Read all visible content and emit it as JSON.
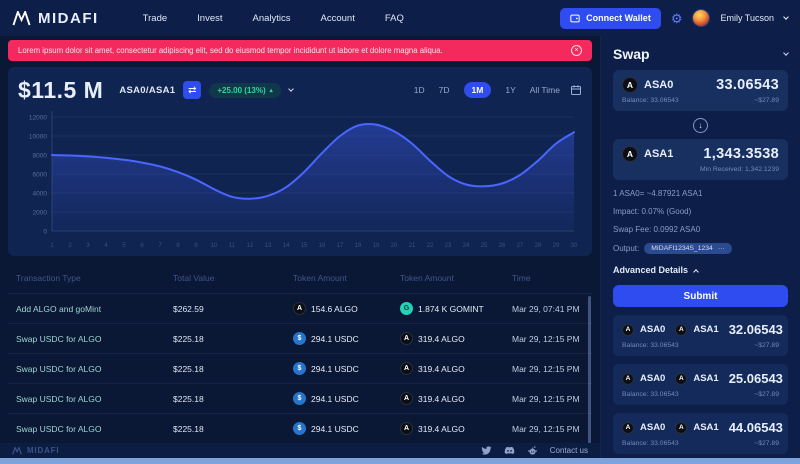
{
  "nav": {
    "brand": "MIDAFI",
    "items": [
      "Trade",
      "Invest",
      "Analytics",
      "Account",
      "FAQ"
    ],
    "connect_wallet": "Connect Wallet",
    "user": "Emily Tucson"
  },
  "banner": {
    "text": "Lorem ipsum dolor sit amet, consectetur adipiscing elit, sed do eiusmod tempor incididunt ut labore et dolore magna aliqua."
  },
  "market": {
    "value": "$11.5 M",
    "pair": "ASA0/ASA1",
    "change": "+25.00 (13%)",
    "ranges": [
      "1D",
      "7D",
      "1M",
      "1Y",
      "All Time"
    ],
    "selected_range": "1M"
  },
  "chart_data": {
    "type": "area",
    "x": [
      1,
      2,
      3,
      4,
      5,
      6,
      7,
      8,
      9,
      10,
      11,
      12,
      13,
      14,
      15,
      16,
      17,
      18,
      19,
      20,
      21,
      22,
      23,
      24,
      25,
      26,
      27,
      28,
      29,
      30
    ],
    "values": [
      8000,
      7950,
      7850,
      7700,
      7500,
      7200,
      6800,
      6200,
      5400,
      4400,
      3600,
      3400,
      3700,
      4600,
      6200,
      8200,
      10000,
      11100,
      11200,
      10500,
      9200,
      7400,
      5800,
      4900,
      4700,
      5000,
      5900,
      7400,
      9200,
      10400
    ],
    "ylim": [
      0,
      12000
    ],
    "yticks": [
      0,
      2000,
      4000,
      6000,
      8000,
      10000,
      12000
    ],
    "title": "",
    "xlabel": "",
    "ylabel": "",
    "grid": true,
    "legend": false,
    "line_color": "#4a66ff",
    "fill_from": "rgba(62,92,235,0.42)",
    "fill_to": "rgba(62,92,235,0.05)"
  },
  "transactions": {
    "headers": [
      "Transaction Type",
      "Total Value",
      "Token Amount",
      "Token Amount",
      "Time"
    ],
    "rows": [
      {
        "type": "Add ALGO and goMint",
        "total": "$262.59",
        "token1": "ALGO",
        "amount1": "154.6 ALGO",
        "token2": "GOMINT",
        "amount2": "1.874 K GOMINT",
        "time": "Mar 29, 07:41 PM"
      },
      {
        "type": "Swap USDC for ALGO",
        "total": "$225.18",
        "token1": "USDC",
        "amount1": "294.1 USDC",
        "token2": "ALGO",
        "amount2": "319.4 ALGO",
        "time": "Mar 29, 12:15 PM"
      },
      {
        "type": "Swap USDC for ALGO",
        "total": "$225.18",
        "token1": "USDC",
        "amount1": "294.1 USDC",
        "token2": "ALGO",
        "amount2": "319.4 ALGO",
        "time": "Mar 29, 12:15 PM"
      },
      {
        "type": "Swap USDC for ALGO",
        "total": "$225.18",
        "token1": "USDC",
        "amount1": "294.1 USDC",
        "token2": "ALGO",
        "amount2": "319.4 ALGO",
        "time": "Mar 29, 12:15 PM"
      },
      {
        "type": "Swap USDC for ALGO",
        "total": "$225.18",
        "token1": "USDC",
        "amount1": "294.1 USDC",
        "token2": "ALGO",
        "amount2": "319.4 ALGO",
        "time": "Mar 29, 12:15 PM"
      }
    ]
  },
  "swap": {
    "title": "Swap",
    "from": {
      "token": "ASA0",
      "amount": "33.06543",
      "balance": "Balance: 33.06543",
      "fiat": "~$27.89"
    },
    "to": {
      "token": "ASA1",
      "amount": "1,343.3538",
      "min_received": "Min Received: 1,342.1239"
    },
    "rate": "1 ASA0= ~4.87921 ASA1",
    "impact": "Impact: 0.07% (Good)",
    "fee": "Swap Fee: 0.0992 ASA0",
    "output_label": "Output:",
    "output_value": "MIDAFI1234S_1234",
    "advanced": "Advanced Details",
    "submit": "Submit"
  },
  "positions": [
    {
      "token1": "ASA0",
      "token2": "ASA1",
      "value": "32.06543",
      "balance": "Balance: 33.06543",
      "fiat": "~$27.89"
    },
    {
      "token1": "ASA0",
      "token2": "ASA1",
      "value": "25.06543",
      "balance": "Balance: 33.06543",
      "fiat": "~$27.89"
    },
    {
      "token1": "ASA0",
      "token2": "ASA1",
      "value": "44.06543",
      "balance": "Balance: 33.06543",
      "fiat": "~$27.89"
    }
  ],
  "footer": {
    "brand": "MIDAFI",
    "contact": "Contact us"
  },
  "colors": {
    "accent": "#2e4cf0",
    "positive": "#2fd79b",
    "banner": "#f42a5f",
    "algo_icon": "#0b0e14",
    "usdc_icon": "#2775ca",
    "gomint_icon": "#22d3b5"
  }
}
